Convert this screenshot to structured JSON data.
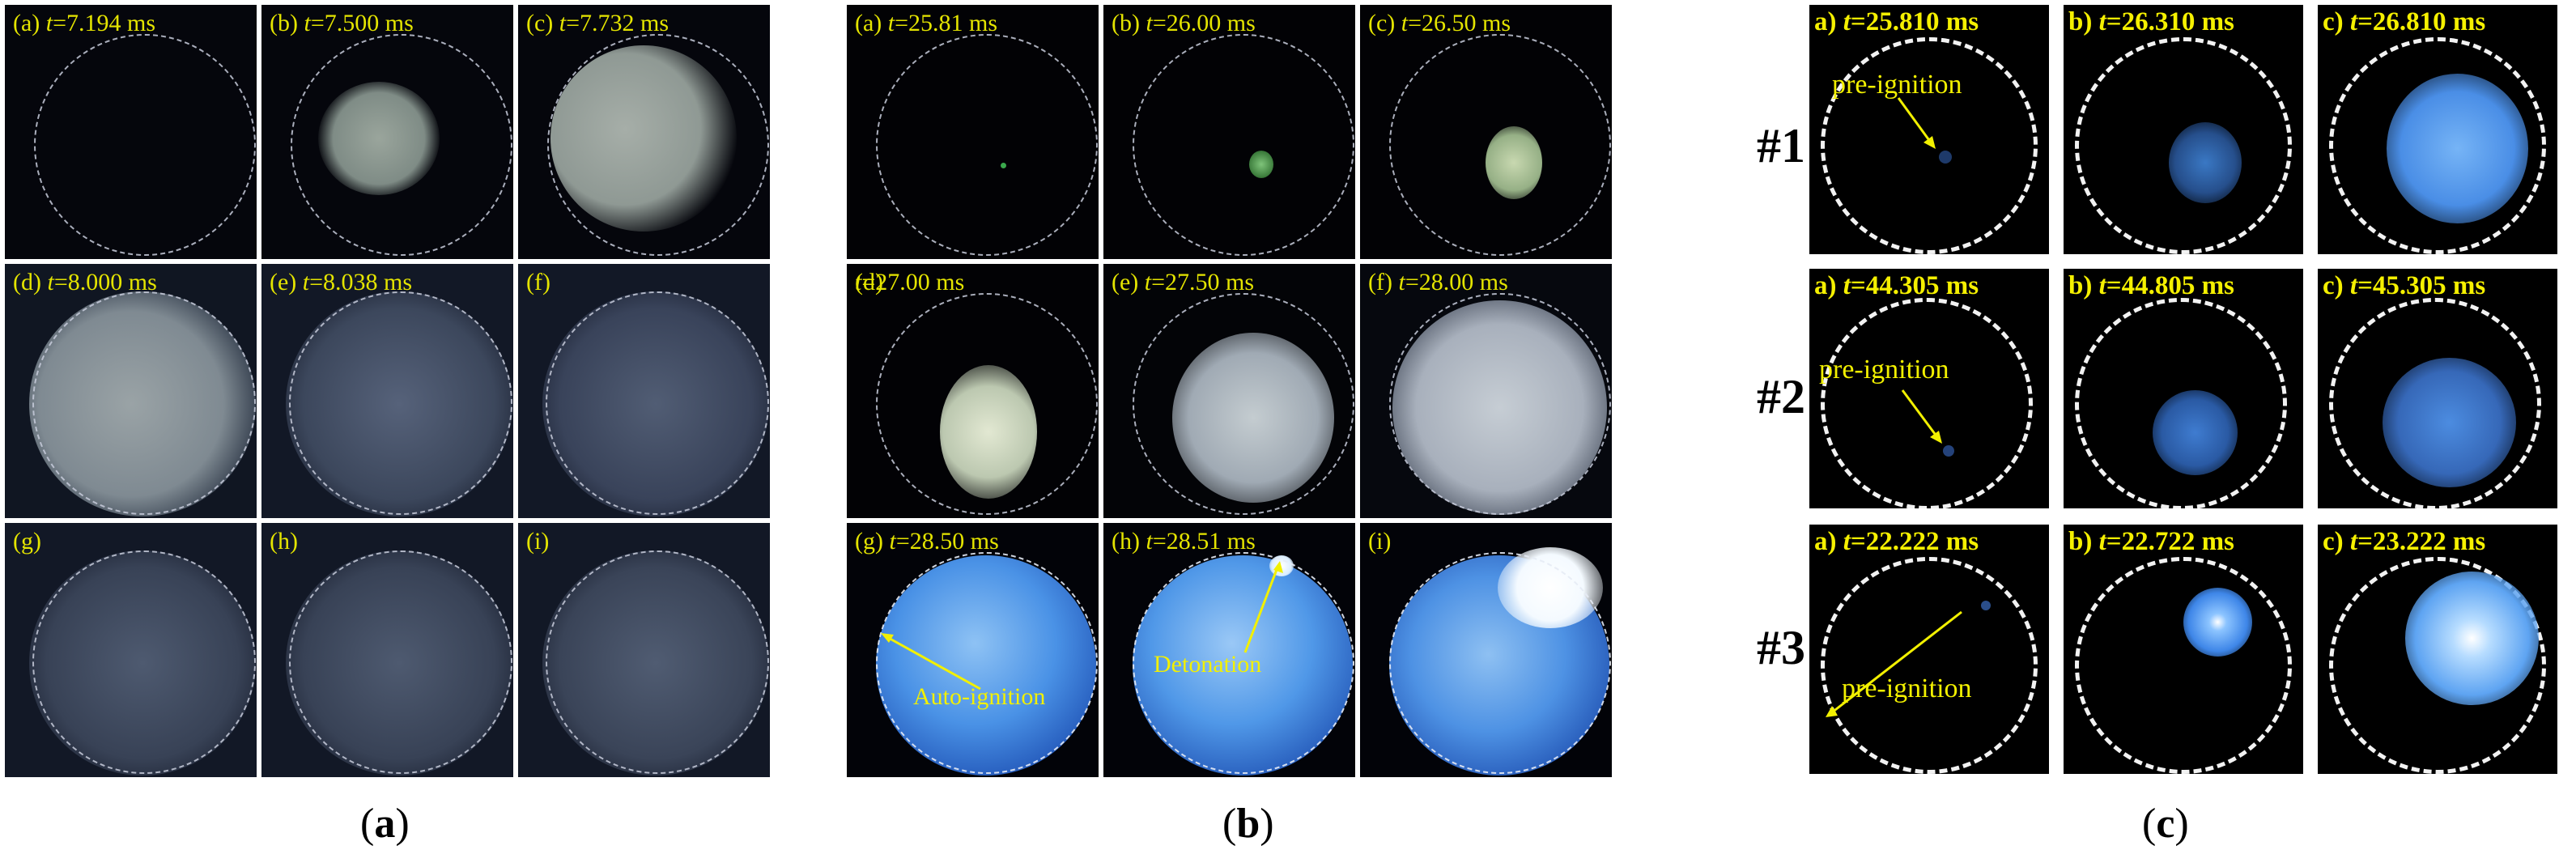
{
  "panels": [
    {
      "id": "a",
      "caption": "a",
      "frames": [
        {
          "letter": "(a)",
          "time": "=7.194 ms"
        },
        {
          "letter": "(b)",
          "time": "=7.500 ms"
        },
        {
          "letter": "(c)",
          "time": "=7.732 ms"
        },
        {
          "letter": "(d)",
          "time": "=8.000 ms"
        },
        {
          "letter": "(e)",
          "time": "=8.038 ms"
        },
        {
          "letter": "(f)",
          "time": ""
        },
        {
          "letter": "(g)",
          "time": ""
        },
        {
          "letter": "(h)",
          "time": ""
        },
        {
          "letter": "(i)",
          "time": ""
        }
      ]
    },
    {
      "id": "b",
      "caption": "b",
      "frames": [
        {
          "letter": "(a)",
          "time": "=25.81 ms"
        },
        {
          "letter": "(b)",
          "time": "=26.00 ms"
        },
        {
          "letter": "(c)",
          "time": "=26.50 ms"
        },
        {
          "letter": "(d)",
          "time": "=27.00 ms"
        },
        {
          "letter": "(e)",
          "time": "=27.50 ms"
        },
        {
          "letter": "(f)",
          "time": "=28.00 ms"
        },
        {
          "letter": "(g)",
          "time": "=28.50 ms"
        },
        {
          "letter": "(h)",
          "time": "=28.51 ms"
        },
        {
          "letter": "(i)",
          "time": ""
        }
      ],
      "annotations": {
        "auto_ignition": "Auto-ignition",
        "detonation": "Detonation"
      }
    },
    {
      "id": "c",
      "caption": "c",
      "rows": [
        {
          "label": "#1",
          "frames": [
            {
              "letter": "a)",
              "time": "=25.810 ms"
            },
            {
              "letter": "b)",
              "time": "=26.310 ms"
            },
            {
              "letter": "c)",
              "time": "=26.810 ms"
            }
          ]
        },
        {
          "label": "#2",
          "frames": [
            {
              "letter": "a)",
              "time": "=44.305 ms"
            },
            {
              "letter": "b)",
              "time": "=44.805 ms"
            },
            {
              "letter": "c)",
              "time": "=45.305 ms"
            }
          ]
        },
        {
          "label": "#3",
          "frames": [
            {
              "letter": "a)",
              "time": "=22.222 ms"
            },
            {
              "letter": "b)",
              "time": "=22.722 ms"
            },
            {
              "letter": "c)",
              "time": "=23.222 ms"
            }
          ]
        }
      ],
      "annotations": {
        "pre_ignition": "pre-ignition"
      }
    }
  ],
  "time_symbol": "t",
  "caption_open": "(",
  "caption_close": ")"
}
